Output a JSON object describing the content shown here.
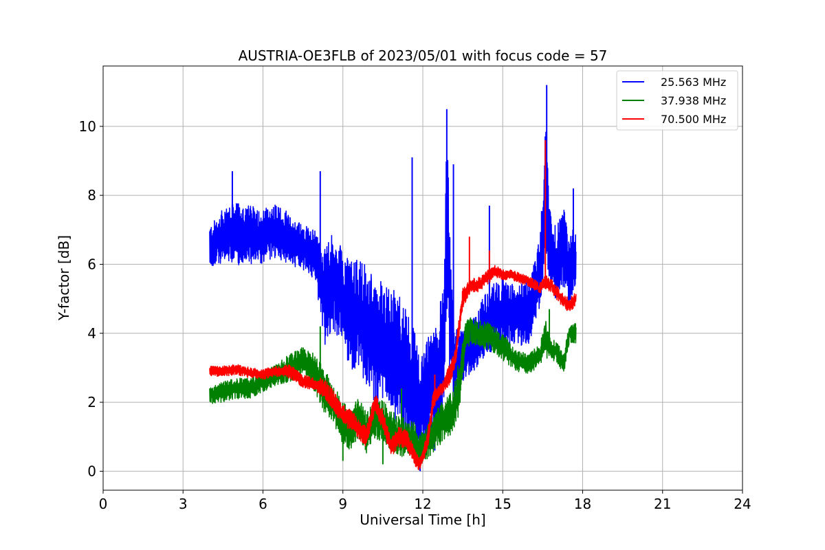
{
  "chart_data": {
    "type": "line",
    "title": "AUSTRIA-OE3FLB of 2023/05/01 with focus code = 57",
    "xlabel": "Universal Time [h]",
    "ylabel": "Y-factor [dB]",
    "xlim": [
      0,
      24
    ],
    "ylim": [
      -0.55,
      11.75
    ],
    "xticks": [
      0,
      3,
      6,
      9,
      12,
      15,
      18,
      21,
      24
    ],
    "yticks": [
      0,
      2,
      4,
      6,
      8,
      10
    ],
    "grid": true,
    "legend_position": "top-right",
    "series": [
      {
        "name": "25.563 MHz",
        "color": "#0000ff",
        "x": [
          4.0,
          4.5,
          5.0,
          5.5,
          6.0,
          6.5,
          7.0,
          7.5,
          8.0,
          8.3,
          8.6,
          9.0,
          9.3,
          9.6,
          9.9,
          10.2,
          10.5,
          10.8,
          11.1,
          11.4,
          11.7,
          11.9,
          12.2,
          12.5,
          12.8,
          12.9,
          13.0,
          13.2,
          13.5,
          13.7,
          14.0,
          14.3,
          14.7,
          15.0,
          15.5,
          16.0,
          16.4,
          16.6,
          16.8,
          17.0,
          17.3,
          17.5,
          17.75
        ],
        "y": [
          6.5,
          6.8,
          6.9,
          6.8,
          6.8,
          7.0,
          6.7,
          6.5,
          6.2,
          5.0,
          5.5,
          5.0,
          4.5,
          4.6,
          4.2,
          3.6,
          3.8,
          3.5,
          3.2,
          2.8,
          2.4,
          1.8,
          2.3,
          2.5,
          3.5,
          7.5,
          5.0,
          3.0,
          3.3,
          3.5,
          3.8,
          4.2,
          4.5,
          4.6,
          4.5,
          4.6,
          5.8,
          8.0,
          6.4,
          6.0,
          6.5,
          5.8,
          6.0
        ],
        "spread": [
          0.6,
          0.8,
          0.9,
          0.9,
          0.8,
          0.8,
          0.7,
          0.7,
          0.8,
          1.4,
          1.4,
          1.4,
          1.6,
          1.6,
          1.8,
          1.8,
          1.8,
          1.8,
          2.0,
          2.0,
          1.6,
          1.4,
          1.6,
          1.8,
          2.0,
          2.8,
          2.4,
          1.2,
          0.8,
          0.8,
          0.8,
          0.9,
          1.0,
          1.0,
          0.9,
          0.9,
          1.0,
          2.0,
          1.0,
          1.1,
          1.1,
          1.0,
          1.2
        ],
        "spikes": [
          {
            "x": 4.85,
            "y": 8.7
          },
          {
            "x": 8.15,
            "y": 8.7
          },
          {
            "x": 11.6,
            "y": 9.1
          },
          {
            "x": 12.9,
            "y": 10.5
          },
          {
            "x": 13.15,
            "y": 8.9
          },
          {
            "x": 14.5,
            "y": 7.7
          },
          {
            "x": 16.65,
            "y": 11.2
          },
          {
            "x": 17.65,
            "y": 8.2
          },
          {
            "x": 11.9,
            "y": 0.0
          },
          {
            "x": 12.45,
            "y": 0.6
          }
        ]
      },
      {
        "name": "37.938 MHz",
        "color": "#008000",
        "x": [
          4.0,
          4.5,
          5.0,
          5.5,
          6.0,
          6.5,
          7.0,
          7.5,
          8.0,
          8.3,
          8.6,
          9.0,
          9.3,
          9.6,
          9.9,
          10.2,
          10.5,
          10.8,
          11.1,
          11.4,
          11.7,
          11.9,
          12.2,
          12.5,
          12.8,
          13.1,
          13.4,
          13.6,
          14.0,
          14.5,
          15.0,
          15.5,
          16.0,
          16.4,
          16.6,
          16.8,
          17.0,
          17.3,
          17.5,
          17.75
        ],
        "y": [
          2.2,
          2.3,
          2.4,
          2.4,
          2.6,
          2.8,
          3.0,
          3.2,
          2.8,
          2.3,
          2.0,
          1.4,
          1.2,
          1.6,
          1.1,
          1.5,
          1.5,
          1.2,
          1.0,
          1.0,
          0.9,
          0.6,
          0.9,
          1.2,
          1.5,
          1.7,
          2.5,
          4.0,
          4.0,
          3.9,
          3.6,
          3.2,
          3.1,
          3.4,
          3.9,
          3.5,
          3.5,
          3.1,
          4.0,
          4.0
        ],
        "spread": [
          0.25,
          0.3,
          0.3,
          0.3,
          0.3,
          0.3,
          0.4,
          0.4,
          0.6,
          0.6,
          0.6,
          0.6,
          0.6,
          0.6,
          0.6,
          0.6,
          0.6,
          0.6,
          0.6,
          0.6,
          0.5,
          0.5,
          0.5,
          0.6,
          0.6,
          0.6,
          0.8,
          0.4,
          0.4,
          0.4,
          0.4,
          0.3,
          0.3,
          0.3,
          0.6,
          0.3,
          0.3,
          0.3,
          0.3,
          0.3
        ],
        "spikes": [
          {
            "x": 8.15,
            "y": 4.2
          },
          {
            "x": 9.0,
            "y": 0.3
          },
          {
            "x": 10.5,
            "y": 0.2
          },
          {
            "x": 11.2,
            "y": 2.4
          },
          {
            "x": 16.75,
            "y": 4.7
          }
        ]
      },
      {
        "name": "70.500 MHz",
        "color": "#ff0000",
        "x": [
          4.0,
          4.5,
          5.0,
          5.5,
          6.0,
          6.5,
          7.0,
          7.5,
          8.0,
          8.3,
          8.6,
          9.0,
          9.3,
          9.6,
          9.9,
          10.2,
          10.5,
          10.8,
          11.1,
          11.4,
          11.7,
          11.85,
          12.0,
          12.2,
          12.4,
          12.6,
          12.8,
          13.0,
          13.2,
          13.5,
          13.8,
          14.1,
          14.4,
          14.7,
          15.0,
          15.3,
          15.6,
          16.0,
          16.4,
          16.6,
          16.9,
          17.2,
          17.5,
          17.75
        ],
        "y": [
          2.9,
          2.9,
          2.95,
          2.85,
          2.8,
          2.9,
          2.9,
          2.6,
          2.5,
          2.4,
          2.1,
          1.6,
          1.5,
          1.2,
          1.0,
          2.0,
          1.5,
          0.7,
          1.0,
          0.9,
          0.4,
          0.2,
          0.4,
          1.0,
          2.1,
          2.3,
          2.5,
          2.8,
          3.2,
          5.0,
          5.4,
          5.4,
          5.6,
          5.8,
          5.7,
          5.7,
          5.6,
          5.5,
          5.3,
          5.5,
          5.3,
          5.0,
          4.8,
          5.0
        ],
        "spread": [
          0.15,
          0.15,
          0.15,
          0.15,
          0.15,
          0.15,
          0.2,
          0.2,
          0.2,
          0.3,
          0.3,
          0.3,
          0.3,
          0.3,
          0.3,
          0.3,
          0.3,
          0.3,
          0.3,
          0.3,
          0.25,
          0.2,
          0.2,
          0.3,
          0.25,
          0.2,
          0.2,
          0.3,
          0.3,
          0.3,
          0.2,
          0.2,
          0.2,
          0.2,
          0.15,
          0.15,
          0.15,
          0.15,
          0.15,
          0.2,
          0.2,
          0.2,
          0.2,
          0.2
        ],
        "spikes": [
          {
            "x": 13.75,
            "y": 6.8
          },
          {
            "x": 14.5,
            "y": 6.4
          },
          {
            "x": 16.6,
            "y": 9.6
          },
          {
            "x": 12.45,
            "y": 2.8
          }
        ]
      }
    ]
  }
}
